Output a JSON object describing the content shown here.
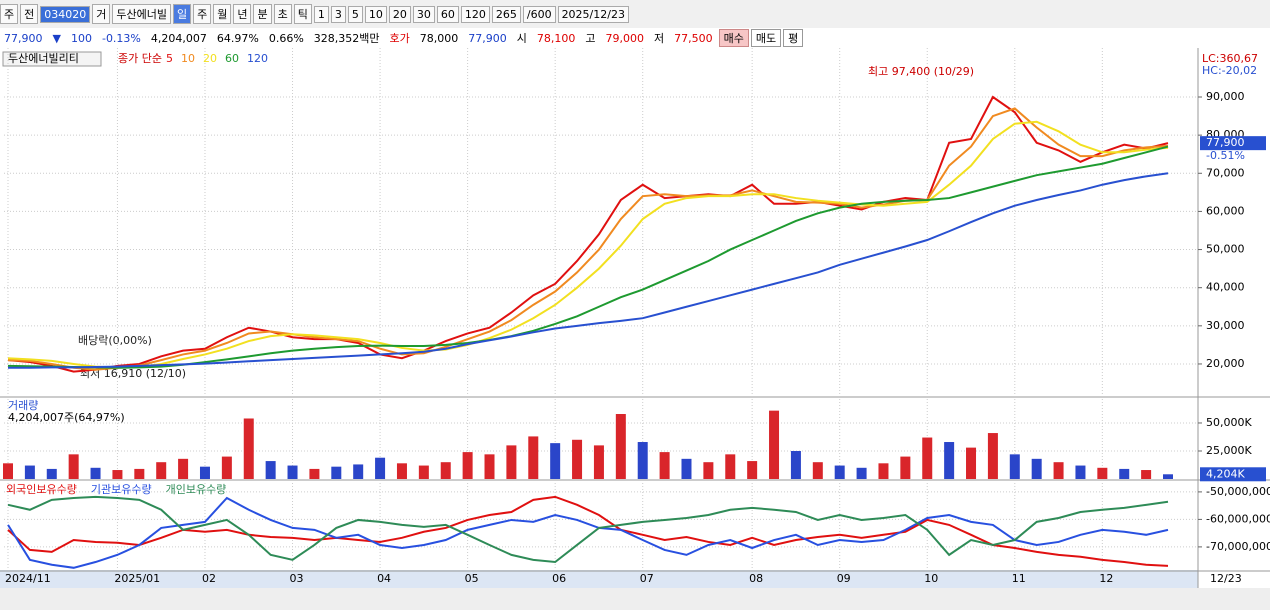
{
  "toolbar": [
    "주",
    "전",
    "034020",
    "거",
    "두산에너빌",
    "일",
    "주",
    "월",
    "년",
    "분",
    "초",
    "틱",
    "1",
    "3",
    "5",
    "10",
    "20",
    "30",
    "60",
    "120",
    "265",
    "/600",
    "2025/12/23"
  ],
  "info_bar": [
    "77,900",
    "▼",
    "100",
    "-0.13%",
    "4,204,007",
    "64.97%",
    "0.66%",
    "328,352백만",
    "호가",
    "78,000",
    "77,900",
    "시",
    "78,100",
    "고",
    "79,000",
    "저",
    "77,500",
    "매수",
    "매도",
    "평"
  ],
  "pane_title": "두산에너빌리티",
  "chart_data": [
    {
      "type": "line",
      "legend_prefix": "종가 단순",
      "categories": [
        "2024/11",
        null,
        null,
        null,
        null,
        "2025/01",
        null,
        null,
        null,
        "02",
        null,
        null,
        null,
        "03",
        null,
        null,
        null,
        "04",
        null,
        null,
        null,
        "05",
        null,
        null,
        null,
        "06",
        null,
        null,
        null,
        "07",
        null,
        null,
        null,
        null,
        "08",
        null,
        null,
        null,
        "09",
        null,
        null,
        null,
        "10",
        null,
        null,
        null,
        "11",
        null,
        null,
        null,
        "12",
        null,
        null,
        null
      ],
      "x_end_label": "12/23",
      "ylim": [
        11600,
        101800
      ],
      "yticks": [
        {
          "value": 20000,
          "label": "20,000"
        },
        {
          "value": 30000,
          "label": "30,000"
        },
        {
          "value": 40000,
          "label": "40,000"
        },
        {
          "value": 50000,
          "label": "50,000"
        },
        {
          "value": 60000,
          "label": "60,000"
        },
        {
          "value": 70000,
          "label": "70,000"
        },
        {
          "value": 80000,
          "label": "80,000"
        },
        {
          "value": 90000,
          "label": "90,000"
        }
      ],
      "grid": true,
      "annotations": {
        "high": "최고 97,400 (10/29)",
        "low": "최저 16,910 (12/10)",
        "dividend": "배당락(0,00%)",
        "lc": "LC:360,67",
        "hc": "HC:-20,02",
        "last": "77,900",
        "change": "-0.51%"
      },
      "last_value": 77900,
      "series": [
        {
          "name": "5",
          "color": "#e01010",
          "values": [
            21000,
            20500,
            19500,
            18000,
            18500,
            19500,
            20000,
            22000,
            23500,
            24000,
            27000,
            29500,
            28500,
            27000,
            26500,
            26500,
            25500,
            22500,
            21500,
            23500,
            26000,
            28000,
            29500,
            33500,
            38000,
            41000,
            47000,
            54000,
            63000,
            67000,
            63500,
            64000,
            64500,
            64000,
            67000,
            62000,
            62000,
            62500,
            61500,
            60500,
            62500,
            63500,
            63000,
            78000,
            79000,
            90000,
            86000,
            78000,
            76000,
            73000,
            75500,
            77500,
            76500,
            77900
          ]
        },
        {
          "name": "10",
          "color": "#f08a20",
          "values": [
            21000,
            20800,
            20000,
            19000,
            18500,
            19000,
            19600,
            21000,
            22500,
            23500,
            25500,
            28000,
            28500,
            27800,
            27000,
            26500,
            26000,
            24000,
            22500,
            22800,
            24500,
            26500,
            28500,
            31500,
            35500,
            39000,
            44000,
            50000,
            58000,
            64000,
            64500,
            64000,
            64200,
            64200,
            65500,
            64000,
            62500,
            62300,
            62000,
            61000,
            61800,
            62800,
            63000,
            72000,
            77000,
            85000,
            87000,
            82000,
            77500,
            74500,
            74500,
            76000,
            76800,
            77200
          ]
        },
        {
          "name": "20",
          "color": "#f2e020",
          "values": [
            21500,
            21200,
            20800,
            20000,
            19300,
            19000,
            19200,
            20000,
            21300,
            22500,
            24000,
            26000,
            27300,
            27800,
            27500,
            27000,
            26500,
            25500,
            24200,
            23500,
            23800,
            25000,
            26800,
            29000,
            32000,
            35500,
            40000,
            45000,
            51000,
            58000,
            62000,
            63500,
            64000,
            64000,
            64500,
            64500,
            63500,
            62800,
            62300,
            61800,
            61500,
            62000,
            62500,
            67000,
            72000,
            79000,
            83000,
            83500,
            81000,
            77500,
            75500,
            75500,
            76200,
            76700
          ]
        },
        {
          "name": "60",
          "color": "#1e9a30",
          "values": [
            19500,
            19400,
            19300,
            19200,
            19100,
            19000,
            19100,
            19300,
            19800,
            20500,
            21200,
            22000,
            22800,
            23500,
            24000,
            24400,
            24700,
            24800,
            24700,
            24700,
            25000,
            25500,
            26300,
            27300,
            28700,
            30500,
            32500,
            35000,
            37500,
            39500,
            42000,
            44500,
            47000,
            50000,
            52500,
            55000,
            57500,
            59500,
            61000,
            62000,
            62500,
            62800,
            63000,
            63500,
            65000,
            66500,
            68000,
            69500,
            70500,
            71500,
            72500,
            74000,
            75500,
            77000
          ]
        },
        {
          "name": "120",
          "color": "#2850d0",
          "values": [
            19000,
            19000,
            19100,
            19100,
            19200,
            19300,
            19500,
            19700,
            19900,
            20100,
            20400,
            20700,
            21000,
            21300,
            21600,
            21900,
            22200,
            22500,
            22800,
            23200,
            24000,
            25200,
            26200,
            27200,
            28300,
            29300,
            30000,
            30700,
            31300,
            32000,
            33500,
            35000,
            36500,
            38000,
            39500,
            41000,
            42500,
            44000,
            46000,
            47600,
            49200,
            50800,
            52500,
            54800,
            57200,
            59500,
            61500,
            63000,
            64300,
            65500,
            67000,
            68200,
            69200,
            70000
          ]
        }
      ]
    },
    {
      "type": "bar",
      "title": "거래량",
      "subtitle": "4,204,007주(64,97%)",
      "ylim": [
        0,
        70500
      ],
      "yticks": [
        {
          "value": 25000,
          "label": "25,000K"
        },
        {
          "value": 50000,
          "label": "50,000K"
        }
      ],
      "last_value": 4204,
      "last_label": "4,204K",
      "values": [
        14000,
        12000,
        9000,
        22000,
        10000,
        8000,
        9000,
        15000,
        18000,
        11000,
        20000,
        54000,
        16000,
        12000,
        9000,
        11000,
        13000,
        19000,
        14000,
        12000,
        15000,
        24000,
        22000,
        30000,
        38000,
        32000,
        35000,
        30000,
        58000,
        33000,
        24000,
        18000,
        15000,
        22000,
        16000,
        61000,
        25000,
        15000,
        12000,
        10000,
        14000,
        20000,
        37000,
        33000,
        28000,
        41000,
        22000,
        18000,
        15000,
        12000,
        10000,
        9000,
        8000,
        4204
      ],
      "colors": [
        "#d9252a",
        "#2a45c9",
        "#2a45c9",
        "#d9252a",
        "#2a45c9",
        "#d9252a",
        "#d9252a",
        "#d9252a",
        "#d9252a",
        "#2a45c9",
        "#d9252a",
        "#d9252a",
        "#2a45c9",
        "#2a45c9",
        "#d9252a",
        "#2a45c9",
        "#2a45c9",
        "#2a45c9",
        "#d9252a",
        "#d9252a",
        "#d9252a",
        "#d9252a",
        "#d9252a",
        "#d9252a",
        "#d9252a",
        "#2a45c9",
        "#d9252a",
        "#d9252a",
        "#d9252a",
        "#2a45c9",
        "#d9252a",
        "#2a45c9",
        "#d9252a",
        "#d9252a",
        "#d9252a",
        "#d9252a",
        "#2a45c9",
        "#d9252a",
        "#2a45c9",
        "#2a45c9",
        "#d9252a",
        "#d9252a",
        "#d9252a",
        "#2a45c9",
        "#d9252a",
        "#d9252a",
        "#2a45c9",
        "#2a45c9",
        "#d9252a",
        "#2a45c9",
        "#d9252a",
        "#2a45c9",
        "#d9252a",
        "#2a45c9"
      ]
    },
    {
      "type": "line",
      "ylim": [
        -78400000,
        -46400000
      ],
      "yticks": [
        {
          "value": -50000000,
          "label": "-50,000,000"
        },
        {
          "value": -60000000,
          "label": "-60,000,000"
        },
        {
          "value": -70000000,
          "label": "-70,000,000"
        }
      ],
      "series": [
        {
          "name": "외국인보유수량",
          "color": "#e01010",
          "values": [
            -63800000,
            -71100000,
            -71800000,
            -67500000,
            -68200000,
            -68500000,
            -69300000,
            -66700000,
            -63800000,
            -64500000,
            -63800000,
            -65600000,
            -66400000,
            -66700000,
            -67500000,
            -66700000,
            -67500000,
            -68200000,
            -66700000,
            -64500000,
            -63100000,
            -60200000,
            -58400000,
            -57300000,
            -52900000,
            -51800000,
            -54700000,
            -58400000,
            -63800000,
            -65600000,
            -67500000,
            -66400000,
            -68200000,
            -69300000,
            -66700000,
            -69300000,
            -67500000,
            -66400000,
            -65600000,
            -66700000,
            -65600000,
            -64500000,
            -60200000,
            -62000000,
            -65600000,
            -69300000,
            -70400000,
            -71800000,
            -72900000,
            -73600000,
            -74700000,
            -75500000,
            -76500000,
            -76900000
          ]
        },
        {
          "name": "기관보유수량",
          "color": "#2850e0",
          "values": [
            -62000000,
            -74700000,
            -76500000,
            -77600000,
            -75500000,
            -72900000,
            -69300000,
            -63100000,
            -62000000,
            -60900000,
            -52200000,
            -56500000,
            -60200000,
            -63100000,
            -63800000,
            -66700000,
            -65600000,
            -69300000,
            -70400000,
            -69300000,
            -67500000,
            -63800000,
            -62000000,
            -60200000,
            -60900000,
            -58400000,
            -60200000,
            -63100000,
            -63800000,
            -67500000,
            -71100000,
            -72900000,
            -69300000,
            -67500000,
            -70400000,
            -67500000,
            -65600000,
            -69300000,
            -67500000,
            -68200000,
            -67500000,
            -63800000,
            -59500000,
            -58400000,
            -60900000,
            -62000000,
            -67500000,
            -69300000,
            -68200000,
            -65600000,
            -63800000,
            -64500000,
            -65600000,
            -63800000
          ]
        },
        {
          "name": "개인보유수량",
          "color": "#2e8b57",
          "values": [
            -54700000,
            -56500000,
            -52900000,
            -52200000,
            -51800000,
            -52200000,
            -52900000,
            -56500000,
            -63800000,
            -62000000,
            -60200000,
            -65600000,
            -72900000,
            -74700000,
            -69300000,
            -63100000,
            -60200000,
            -60900000,
            -62000000,
            -62700000,
            -62000000,
            -65600000,
            -69300000,
            -72900000,
            -74700000,
            -75500000,
            -69300000,
            -63100000,
            -62000000,
            -60900000,
            -60200000,
            -59500000,
            -58400000,
            -56500000,
            -55800000,
            -56500000,
            -57300000,
            -60200000,
            -58400000,
            -60200000,
            -59500000,
            -58400000,
            -63800000,
            -72900000,
            -67500000,
            -69300000,
            -67500000,
            -60900000,
            -59500000,
            -57300000,
            -56500000,
            -55800000,
            -54700000,
            -53600000
          ]
        }
      ]
    }
  ]
}
